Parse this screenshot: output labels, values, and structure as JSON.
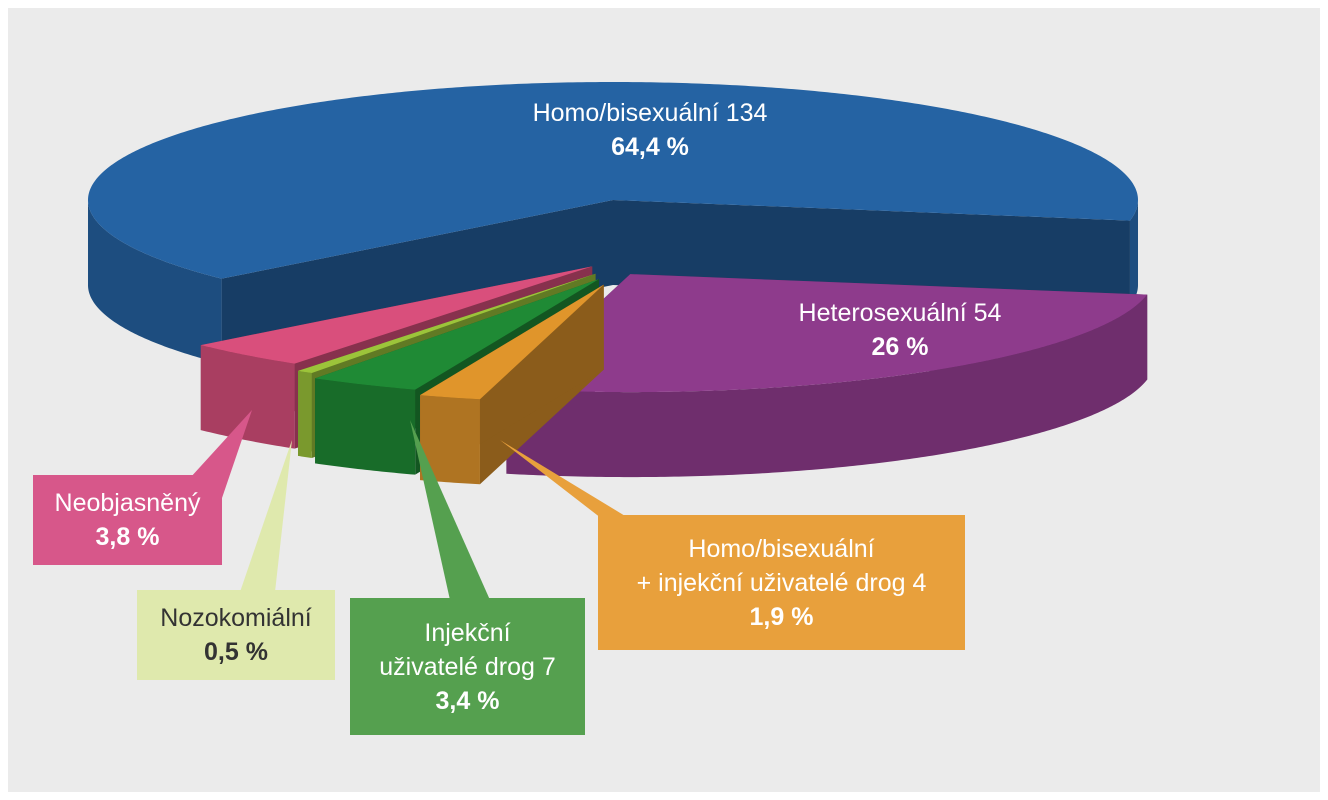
{
  "chart_data": {
    "type": "pie",
    "categories": [
      "Homo/bisexuální 134",
      "Heterosexuální 54",
      "Homo/bisexuální\n+ injekční uživatelé drog 4",
      "Injekční\nuživatelé drog 7",
      "Nozokomiální",
      "Neobjasněný"
    ],
    "values": [
      64.4,
      26,
      1.9,
      3.4,
      0.5,
      3.8
    ],
    "value_labels": [
      "64,4 %",
      "26 %",
      "1,9 %",
      "3,4 %",
      "0,5 %",
      "3,8 %"
    ],
    "colors": [
      "#2563a3",
      "#8e3b8c",
      "#e0952b",
      "#1f8a35",
      "#9cc43a",
      "#d94f7c"
    ]
  }
}
